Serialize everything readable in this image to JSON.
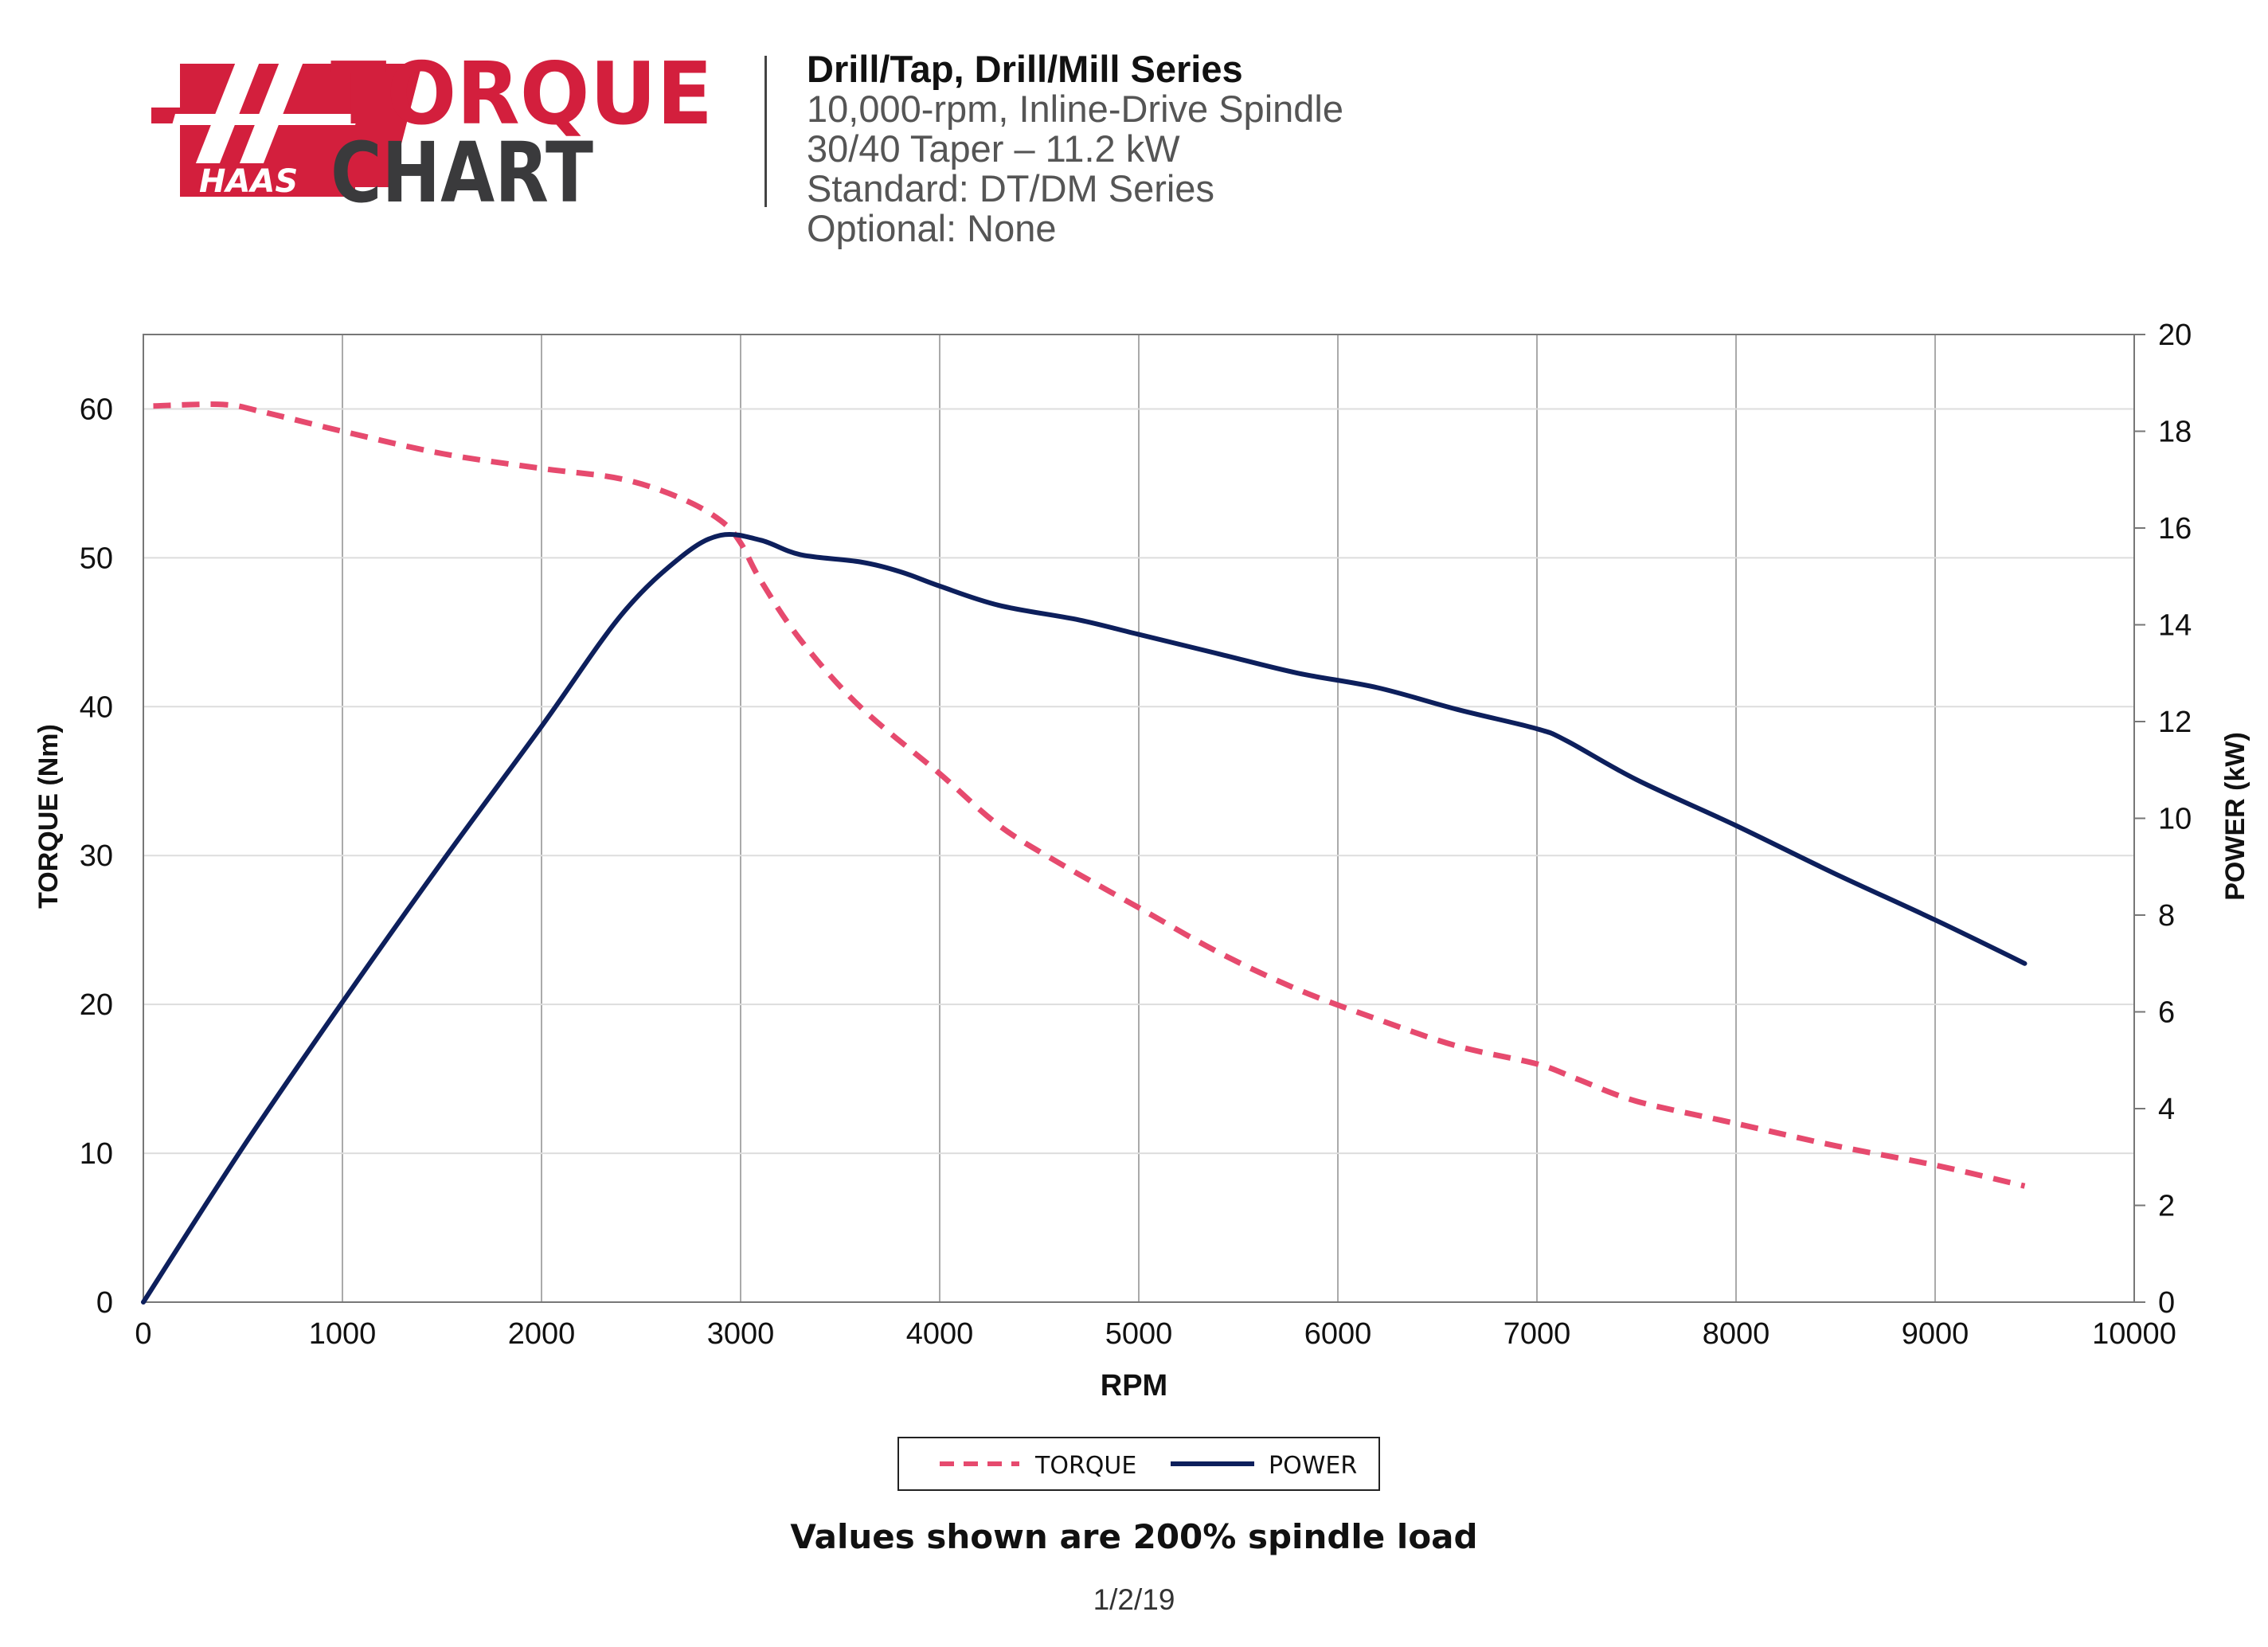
{
  "logo": {
    "brand": "HAAS",
    "word1": "TORQUE",
    "word2": "CHART",
    "colors": {
      "red": "#d31f3d",
      "dark": "#3a3a3c"
    }
  },
  "header": {
    "title": "Drill/Tap, Drill/Mill Series",
    "lines": [
      "10,000-rpm, Inline-Drive Spindle",
      "30/40 Taper – 11.2 kW",
      "Standard: DT/DM Series",
      "Optional: None"
    ]
  },
  "chart_data": {
    "type": "line",
    "xlabel": "RPM",
    "ylabel": "TORQUE (Nm)",
    "y2label": "POWER (kW)",
    "xlim": [
      0,
      10000
    ],
    "ylim": [
      0,
      65
    ],
    "y2lim": [
      0,
      20
    ],
    "x_ticks": [
      0,
      1000,
      2000,
      3000,
      4000,
      5000,
      6000,
      7000,
      8000,
      9000,
      10000
    ],
    "y_ticks": [
      0,
      10,
      20,
      30,
      40,
      50,
      60
    ],
    "y2_ticks": [
      0,
      2,
      4,
      6,
      8,
      10,
      12,
      14,
      16,
      18,
      20
    ],
    "grid": true,
    "legend_position": "bottom-center",
    "series": [
      {
        "name": "TORQUE",
        "axis": "left",
        "style": "dashed",
        "color": "#e64a6e",
        "x": [
          50,
          400,
          600,
          1000,
          1500,
          2000,
          2400,
          2700,
          2900,
          3000,
          3100,
          3300,
          3600,
          4000,
          4300,
          4600,
          5000,
          5400,
          5800,
          6200,
          6600,
          7000,
          7200,
          7500,
          8000,
          8500,
          9000,
          9450
        ],
        "y": [
          60.2,
          60.3,
          59.8,
          58.5,
          57.0,
          56.0,
          55.3,
          54.0,
          52.5,
          51.0,
          48.5,
          44.5,
          40.0,
          35.5,
          32.0,
          29.5,
          26.5,
          23.5,
          21.0,
          19.0,
          17.2,
          16.0,
          15.0,
          13.5,
          12.0,
          10.5,
          9.2,
          7.8
        ]
      },
      {
        "name": "POWER",
        "axis": "right",
        "style": "solid",
        "color": "#0d1f5c",
        "x": [
          0,
          500,
          1000,
          1500,
          2000,
          2400,
          2700,
          2900,
          3100,
          3300,
          3600,
          3800,
          4000,
          4300,
          4700,
          5000,
          5400,
          5800,
          6200,
          6600,
          7000,
          7150,
          7500,
          8000,
          8500,
          9000,
          9450
        ],
        "y": [
          0.0,
          3.2,
          6.2,
          9.1,
          11.9,
          14.2,
          15.4,
          15.85,
          15.75,
          15.45,
          15.3,
          15.1,
          14.8,
          14.4,
          14.1,
          13.8,
          13.4,
          13.0,
          12.7,
          12.25,
          11.85,
          11.6,
          10.8,
          9.85,
          8.85,
          7.9,
          7.0
        ]
      }
    ]
  },
  "footnote": "Values shown are 200% spindle load",
  "date": "1/2/19"
}
